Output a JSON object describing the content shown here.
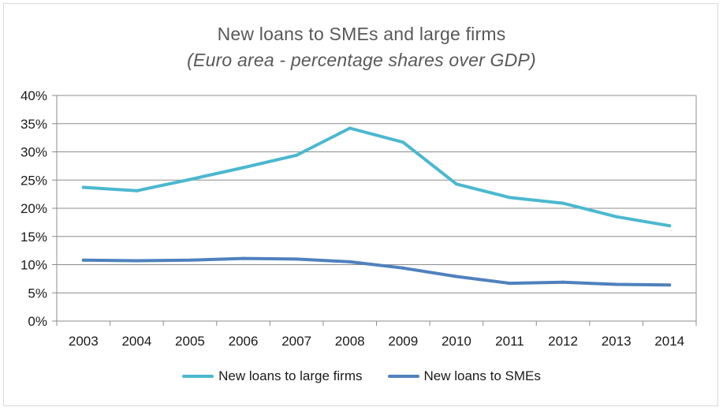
{
  "chart_data": {
    "type": "line",
    "title": "New loans to SMEs and large firms",
    "subtitle": "(Euro area - percentage shares over GDP)",
    "xlabel": "",
    "ylabel": "",
    "x": [
      "2003",
      "2004",
      "2005",
      "2006",
      "2007",
      "2008",
      "2009",
      "2010",
      "2011",
      "2012",
      "2013",
      "2014"
    ],
    "yticks": [
      "0%",
      "5%",
      "10%",
      "15%",
      "20%",
      "25%",
      "30%",
      "35%",
      "40%"
    ],
    "ylim": [
      0,
      40
    ],
    "grid": true,
    "legend_position": "bottom",
    "series": [
      {
        "name": "New loans to large firms",
        "color": "#4bb8cf",
        "values": [
          23.7,
          23.1,
          25.1,
          27.2,
          29.4,
          34.2,
          31.7,
          24.3,
          21.9,
          20.9,
          18.5,
          16.9
        ]
      },
      {
        "name": "New loans to SMEs",
        "color": "#4f81bd",
        "values": [
          10.8,
          10.7,
          10.8,
          11.1,
          11.0,
          10.5,
          9.4,
          7.9,
          6.7,
          6.9,
          6.5,
          6.4
        ]
      }
    ]
  }
}
